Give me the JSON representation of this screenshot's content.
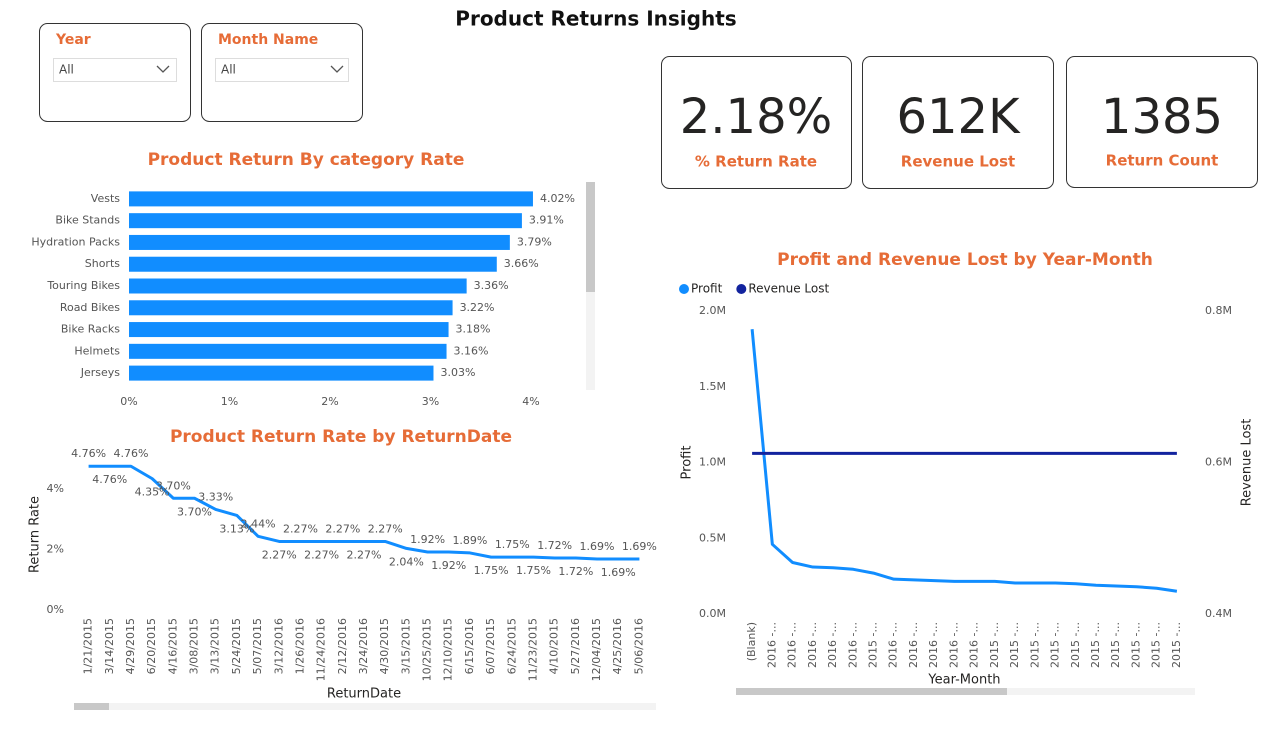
{
  "header": {
    "title": "Product Returns Insights"
  },
  "slicers": [
    {
      "label": "Year",
      "value": "All"
    },
    {
      "label": "Month Name",
      "value": "All"
    }
  ],
  "cards": [
    {
      "value": "2.18%",
      "label": "% Return Rate"
    },
    {
      "value": "612K",
      "label": "Revenue Lost"
    },
    {
      "value": "1385",
      "label": "Return Count"
    }
  ],
  "chart_data": [
    {
      "type": "bar",
      "orientation": "horizontal",
      "title": "Product Return By category Rate",
      "categories": [
        "Vests",
        "Bike Stands",
        "Hydration Packs",
        "Shorts",
        "Touring Bikes",
        "Road Bikes",
        "Bike Racks",
        "Helmets",
        "Jerseys"
      ],
      "values": [
        4.02,
        3.91,
        3.79,
        3.66,
        3.36,
        3.22,
        3.18,
        3.16,
        3.03
      ],
      "value_labels": [
        "4.02%",
        "3.91%",
        "3.79%",
        "3.66%",
        "3.36%",
        "3.22%",
        "3.18%",
        "3.16%",
        "3.03%"
      ],
      "color": "#118DFF",
      "xlim": [
        0,
        4.1
      ],
      "xticks": [
        {
          "value": 0,
          "label": "0%"
        },
        {
          "value": 1,
          "label": "1%"
        },
        {
          "value": 2,
          "label": "2%"
        },
        {
          "value": 3,
          "label": "3%"
        },
        {
          "value": 4,
          "label": "4%"
        }
      ]
    },
    {
      "type": "line",
      "title": "Product Return Rate by ReturnDate",
      "x_label": "ReturnDate",
      "y_label": "Return Rate",
      "categories": [
        "1/21/2015",
        "3/14/2015",
        "4/29/2015",
        "6/20/2015",
        "4/16/2015",
        "3/08/2015",
        "3/13/2015",
        "5/24/2015",
        "5/07/2015",
        "3/12/2016",
        "1/26/2016",
        "11/24/2016",
        "2/12/2016",
        "3/24/2016",
        "4/30/2015",
        "3/15/2015",
        "10/25/2015",
        "12/10/2015",
        "6/15/2016",
        "6/07/2015",
        "6/24/2015",
        "11/23/2015",
        "4/10/2015",
        "5/27/2016",
        "12/04/2015",
        "4/25/2016",
        "5/06/2016"
      ],
      "values": [
        4.76,
        4.76,
        4.76,
        4.35,
        3.7,
        3.7,
        3.33,
        3.13,
        2.44,
        2.27,
        2.27,
        2.27,
        2.27,
        2.27,
        2.27,
        2.04,
        1.92,
        1.92,
        1.89,
        1.75,
        1.75,
        1.75,
        1.72,
        1.72,
        1.69,
        1.69,
        1.69
      ],
      "value_labels": [
        "4.76%",
        "4.76%",
        "4.76%",
        "4.35%",
        "3.70%",
        "3.70%",
        "3.33%",
        "3.13%",
        "2.44%",
        "2.27%",
        "2.27%",
        "2.27%",
        "2.27%",
        "2.27%",
        "2.27%",
        "2.04%",
        "1.92%",
        "1.92%",
        "1.89%",
        "1.75%",
        "1.75%",
        "1.75%",
        "1.72%",
        "1.72%",
        "1.69%",
        "1.69%",
        "1.69%"
      ],
      "color": "#118DFF",
      "ylim": [
        0,
        5
      ],
      "yticks": [
        {
          "value": 0,
          "label": "0%"
        },
        {
          "value": 2,
          "label": "2%"
        },
        {
          "value": 4,
          "label": "4%"
        }
      ]
    },
    {
      "type": "line",
      "title": "Profit and Revenue Lost by Year-Month",
      "x_label": "Year-Month",
      "y_label": "Profit",
      "y2_label": "Revenue Lost",
      "legend": "top-left",
      "categories": [
        "(Blank)",
        "2016 -...",
        "2016 -...",
        "2016 -...",
        "2016 -...",
        "2016 -...",
        "2015 -...",
        "2016 -...",
        "2016 -...",
        "2016 -...",
        "2016 -...",
        "2016 -...",
        "2015 -...",
        "2015 -...",
        "2015 -...",
        "2015 -...",
        "2015 -...",
        "2015 -...",
        "2015 -...",
        "2015 -...",
        "2015 -...",
        "2015 -..."
      ],
      "series": [
        {
          "name": "Profit",
          "color": "#118DFF",
          "values": [
            1.88,
            0.46,
            0.34,
            0.31,
            0.305,
            0.295,
            0.27,
            0.23,
            0.225,
            0.22,
            0.215,
            0.215,
            0.215,
            0.205,
            0.205,
            0.205,
            0.2,
            0.19,
            0.185,
            0.18,
            0.17,
            0.15
          ]
        },
        {
          "name": "Revenue Lost",
          "color": "#12239E",
          "axis": "y2",
          "values": [
            0.612,
            0.612,
            0.612,
            0.612,
            0.612,
            0.612,
            0.612,
            0.612,
            0.612,
            0.612,
            0.612,
            0.612,
            0.612,
            0.612,
            0.612,
            0.612,
            0.612,
            0.612,
            0.612,
            0.612,
            0.612,
            0.612
          ]
        }
      ],
      "ylim": [
        0,
        2
      ],
      "yticks": [
        {
          "value": 0,
          "label": "0.0M"
        },
        {
          "value": 0.5,
          "label": "0.5M"
        },
        {
          "value": 1,
          "label": "1.0M"
        },
        {
          "value": 1.5,
          "label": "1.5M"
        },
        {
          "value": 2,
          "label": "2.0M"
        }
      ],
      "y2lim": [
        0.4,
        0.8
      ],
      "y2ticks": [
        {
          "value": 0.4,
          "label": "0.4M"
        },
        {
          "value": 0.6,
          "label": "0.6M"
        },
        {
          "value": 0.8,
          "label": "0.8M"
        }
      ]
    }
  ]
}
